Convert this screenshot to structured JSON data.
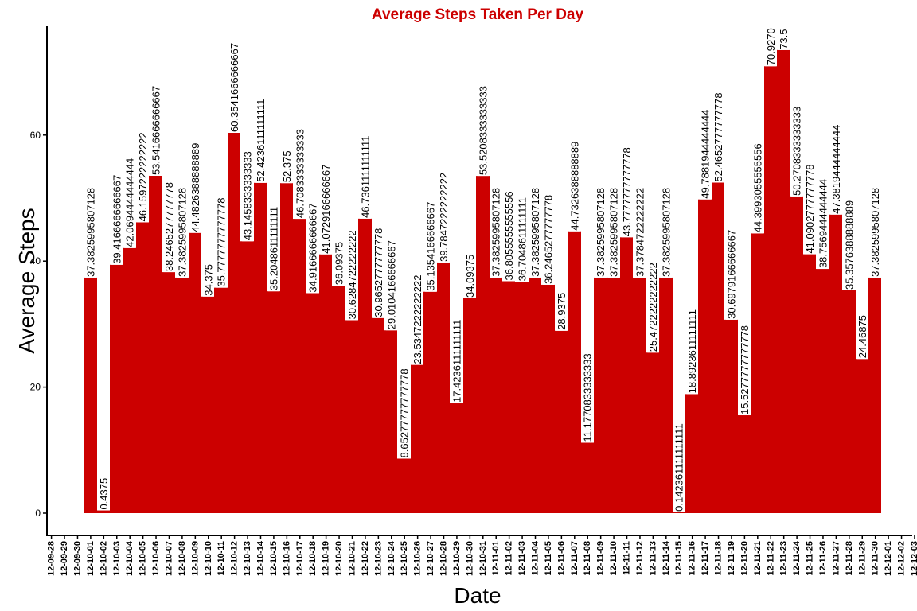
{
  "chart_data": {
    "type": "bar",
    "title": "Average Steps Taken Per Day",
    "xlabel": "Date",
    "ylabel": "Average Steps",
    "ylim": [
      0,
      76
    ],
    "y_ticks": [
      0,
      20,
      40,
      60
    ],
    "grid": false,
    "legend": "none",
    "x_tick_labels": [
      "12-09-28",
      "12-09-29",
      "12-09-30",
      "12-10-01",
      "12-10-02",
      "12-10-03",
      "12-10-04",
      "12-10-05",
      "12-10-06",
      "12-10-07",
      "12-10-08",
      "12-10-09",
      "12-10-10",
      "12-10-11",
      "12-10-12",
      "12-10-13",
      "12-10-14",
      "12-10-15",
      "12-10-16",
      "12-10-17",
      "12-10-18",
      "12-10-19",
      "12-10-20",
      "12-10-21",
      "12-10-22",
      "12-10-23",
      "12-10-24",
      "12-10-25",
      "12-10-26",
      "12-10-27",
      "12-10-28",
      "12-10-29",
      "12-10-30",
      "12-10-31",
      "12-11-01",
      "12-11-02",
      "12-11-03",
      "12-11-04",
      "12-11-05",
      "12-11-06",
      "12-11-07",
      "12-11-08",
      "12-11-09",
      "12-11-10",
      "12-11-11",
      "12-11-12",
      "12-11-13",
      "12-11-14",
      "12-11-15",
      "12-11-16",
      "12-11-17",
      "12-11-18",
      "12-11-19",
      "12-11-20",
      "12-11-21",
      "12-11-22",
      "12-11-23",
      "12-11-24",
      "12-11-25",
      "12-11-26",
      "12-11-27",
      "12-11-28",
      "12-11-29",
      "12-11-30",
      "12-12-01",
      "12-12-02",
      "12-12-03"
    ],
    "categories": [
      "12-10-01",
      "12-10-02",
      "12-10-03",
      "12-10-04",
      "12-10-05",
      "12-10-06",
      "12-10-07",
      "12-10-08",
      "12-10-09",
      "12-10-10",
      "12-10-11",
      "12-10-12",
      "12-10-13",
      "12-10-14",
      "12-10-15",
      "12-10-16",
      "12-10-17",
      "12-10-18",
      "12-10-19",
      "12-10-20",
      "12-10-21",
      "12-10-22",
      "12-10-23",
      "12-10-24",
      "12-10-25",
      "12-10-26",
      "12-10-27",
      "12-10-28",
      "12-10-29",
      "12-10-30",
      "12-10-31",
      "12-11-01",
      "12-11-02",
      "12-11-03",
      "12-11-04",
      "12-11-05",
      "12-11-06",
      "12-11-07",
      "12-11-08",
      "12-11-09",
      "12-11-10",
      "12-11-11",
      "12-11-12",
      "12-11-13",
      "12-11-14",
      "12-11-15",
      "12-11-16",
      "12-11-17",
      "12-11-18",
      "12-11-19",
      "12-11-20",
      "12-11-21",
      "12-11-22",
      "12-11-23",
      "12-11-24",
      "12-11-25",
      "12-11-26",
      "12-11-27",
      "12-11-28",
      "12-11-29",
      "12-11-30"
    ],
    "values": [
      37.3825995807128,
      0.4375,
      39.4166666666667,
      42.0694444444444,
      46.1597222222222,
      53.5416666666667,
      38.2465277777778,
      37.3825995807128,
      44.4826388888889,
      34.375,
      35.7777777777778,
      60.3541666666667,
      43.1458333333333,
      52.4236111111111,
      35.2048611111111,
      52.375,
      46.7083333333333,
      34.9166666666667,
      41.0729166666667,
      36.09375,
      30.6284722222222,
      46.7361111111111,
      30.9652777777778,
      29.0104166666667,
      8.65277777777778,
      23.5347222222222,
      35.1354166666667,
      39.7847222222222,
      17.4236111111111,
      34.09375,
      53.5208333333333,
      37.3825995807128,
      36.8055555555556,
      36.7048611111111,
      37.3825995807128,
      36.2465277777778,
      28.9375,
      44.7326388888889,
      11.1770833333333,
      37.3825995807128,
      37.3825995807128,
      43.7777777777778,
      37.3784722222222,
      25.4722222222222,
      37.3825995807128,
      0.142361111111111,
      18.8923611111111,
      49.7881944444444,
      52.4652777777778,
      30.6979166666667,
      15.5277777777778,
      44.3993055555556,
      70.927,
      73.5,
      50.2708333333333,
      41.0902777777778,
      38.7569444444444,
      47.3819444444444,
      35.3576388888889,
      24.46875,
      37.3825995807128
    ],
    "data_labels": [
      "37.3825995807128",
      "0.4375",
      "39.4166666666667",
      "42.0694444444444",
      "46.1597222222222",
      "53.5416666666667",
      "38.2465277777778",
      "37.3825995807128",
      "44.4826388888889",
      "34.375",
      "35.7777777777778",
      "60.3541666666667",
      "43.1458333333333",
      "52.4236111111111",
      "35.2048611111111",
      "52.375",
      "46.7083333333333",
      "34.9166666666667",
      "41.0729166666667",
      "36.09375",
      "30.6284722222222",
      "46.7361111111111",
      "30.9652777777778",
      "29.0104166666667",
      "8.65277777777778",
      "23.5347222222222",
      "35.1354166666667",
      "39.7847222222222",
      "17.4236111111111",
      "34.09375",
      "53.5208333333333",
      "37.3825995807128",
      "36.8055555555556",
      "36.7048611111111",
      "37.3825995807128",
      "36.2465277777778",
      "28.9375",
      "44.7326388888889",
      "11.1770833333333",
      "37.3825995807128",
      "37.3825995807128",
      "43.7777777777778",
      "37.3784722222222",
      "25.4722222222222",
      "37.3825995807128",
      "0.142361111111111",
      "18.8923611111111",
      "49.7881944444444",
      "52.4652777777778",
      "30.6979166666667",
      "15.5277777777778",
      "44.3993055555556",
      "70.9270",
      "73.5",
      "50.2708333333333",
      "41.0902777777778",
      "38.7569444444444",
      "47.3819444444444",
      "35.3576388888889",
      "24.46875",
      "37.3825995807128"
    ],
    "colors": {
      "bar": "#cc0000",
      "title": "#cc0000",
      "axis": "#000000",
      "text": "#000000"
    }
  }
}
